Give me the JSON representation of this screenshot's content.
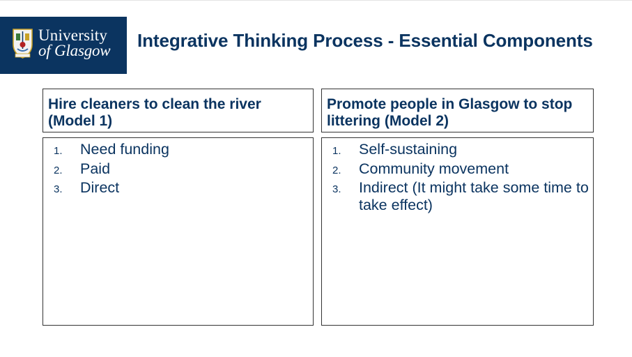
{
  "logo": {
    "line1": "University",
    "line2": "of Glasgow",
    "crest_icon": "university-crest-icon",
    "background_color": "#0b3460"
  },
  "title": "Integrative Thinking Process - Essential Components",
  "models": [
    {
      "heading": "Hire cleaners to clean the river (Model 1)",
      "items": [
        {
          "number": "1.",
          "text": "Need funding"
        },
        {
          "number": "2.",
          "text": "Paid"
        },
        {
          "number": "3.",
          "text": "Direct"
        }
      ]
    },
    {
      "heading": "Promote people in Glasgow to stop littering (Model 2)",
      "items": [
        {
          "number": "1.",
          "text": "Self-sustaining"
        },
        {
          "number": "2.",
          "text": "Community movement"
        },
        {
          "number": "3.",
          "text": "Indirect (It might take some time to take effect)"
        }
      ]
    }
  ],
  "colors": {
    "text": "#0b3460",
    "border": "#333333"
  }
}
